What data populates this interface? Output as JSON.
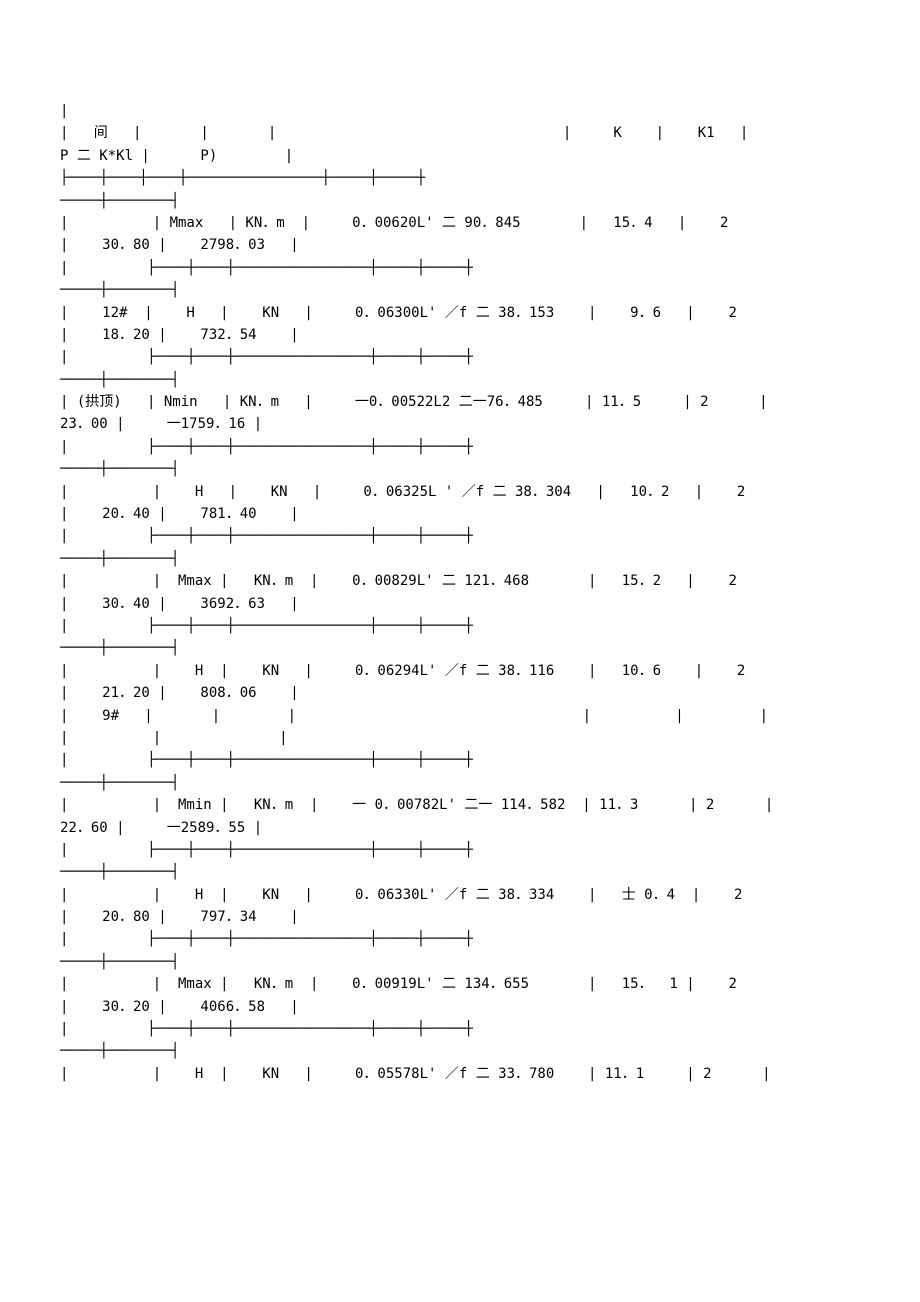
{
  "header": {
    "line1": "|",
    "line2": "|   间   |       |       |                                  |     K    |    K1   |",
    "line3": "P 二 K*Kl |      P)        |"
  },
  "rows": [
    {
      "data": "|          | Mmax   | KN．m  |     0．00620L' 二 90．845       |   15．4   |    2",
      "data2": "|    30．80 |    2798．03   |"
    },
    {
      "data": "|    12#  |    H   |    KN   |     0．06300L' ／f 二 38．153    |    9．6   |    2",
      "data2": "|    18．20 |    732．54    |"
    },
    {
      "data": "| (拱顶)   | Nmin   | KN．m   |     一0．00522L2 二一76．485     | 11．5     | 2      |",
      "data2": "23．00 |     一1759．16 |"
    },
    {
      "data": "|          |    H   |    KN   |     0．06325L ' ／f 二 38．304   |   10．2   |    2",
      "data2": "|    20．40 |    781．40    |"
    },
    {
      "data": "|          |  Mmax |   KN．m  |    0．00829L' 二 121．468       |   15．2   |    2",
      "data2": "|    30．40 |    3692．63   |"
    },
    {
      "data": "|          |    H  |    KN   |     0．06294L' ／f 二 38．116    |   10．6    |    2",
      "data2": "|    21．20 |    808．06    |"
    },
    {
      "data": "|    9#   |       |        |                                  |          |         |",
      "data2": "|          |              |"
    },
    {
      "data": "|          |  Mmin |   KN．m  |    一 0．00782L' 二一 114．582  | 11．3      | 2      |",
      "data2": "22．60 |     一2589．55 |"
    },
    {
      "data": "|          |    H  |    KN   |     0．06330L' ／f 二 38．334    |   士 0．4  |    2",
      "data2": "|    20．80 |    797．34    |"
    },
    {
      "data": "|          |  Mmax |   KN．m  |    0．00919L' 二 134．655       |   15．  1 |    2",
      "data2": "|    30．20 |    4066．58   |"
    },
    {
      "data": "|          |    H  |    KN   |     0．05578L' ／f 二 33．780    | 11．1     | 2      |",
      "data2": ""
    }
  ],
  "separator_top": "├────┼────┼────┼─────────────────┼─────┼─────┼",
  "separator_bottom": "─────┼────────┤",
  "separator_middle": "|          ├────┼────┼─────────────────┼─────┼─────┼",
  "colors": {
    "text": "#000000",
    "background": "#ffffff"
  },
  "typography": {
    "font_family": "SimSun",
    "font_size": 14
  }
}
